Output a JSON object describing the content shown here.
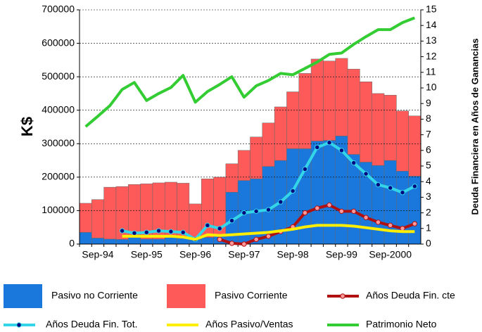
{
  "chart_data": {
    "type": "bar",
    "y_label": "K$",
    "y2_label": "Deuda Financiera en Años de Ganancias",
    "categories": [
      null,
      "Sep-94",
      null,
      null,
      null,
      "Sep-95",
      null,
      null,
      null,
      "Sep-96",
      null,
      null,
      null,
      "Sep-97",
      null,
      null,
      null,
      "Sep-98",
      null,
      null,
      null,
      "Sep-99",
      null,
      null,
      null,
      "Sep-2000",
      null,
      null
    ],
    "ylim": [
      0,
      700000
    ],
    "yticks": [
      0,
      100000,
      200000,
      300000,
      400000,
      500000,
      600000,
      700000
    ],
    "y2lim": [
      0,
      15
    ],
    "y2ticks": [
      0,
      1,
      2,
      3,
      4,
      5,
      6,
      7,
      8,
      9,
      10,
      11,
      12,
      13,
      14,
      15
    ],
    "grid": true,
    "stacked": true,
    "legend": "bottom",
    "series": [
      {
        "name": "Pasivo no Corriente",
        "type": "bar",
        "color": "#1a78dc",
        "values": [
          35000,
          18000,
          15000,
          14000,
          23000,
          15000,
          15000,
          20000,
          17000,
          15000,
          20000,
          25000,
          155000,
          190000,
          195000,
          232000,
          250000,
          285000,
          285000,
          308000,
          310000,
          323000,
          268000,
          245000,
          235000,
          250000,
          218000,
          203000
        ]
      },
      {
        "name": "Pasivo Corriente",
        "type": "bar",
        "color": "#ff5a5a",
        "values": [
          87000,
          115000,
          155000,
          158000,
          155000,
          165000,
          168000,
          165000,
          165000,
          105000,
          175000,
          175000,
          85000,
          90000,
          125000,
          130000,
          160000,
          170000,
          225000,
          245000,
          237000,
          232000,
          255000,
          240000,
          215000,
          195000,
          180000,
          180000
        ]
      },
      {
        "name": "Años Deuda Fin. cte",
        "type": "line",
        "axis": "y2",
        "color": "#b01010",
        "marker_color": "#ff9999",
        "values": [
          null,
          null,
          null,
          null,
          null,
          null,
          null,
          null,
          null,
          null,
          null,
          0.3,
          0.05,
          0,
          0.3,
          0.5,
          0.8,
          1.1,
          2.0,
          2.3,
          2.5,
          2.1,
          2.1,
          1.7,
          1.4,
          1.2,
          1.0,
          1.3
        ]
      },
      {
        "name": "Años Deuda Fin. Tot.",
        "type": "line",
        "axis": "y2",
        "color": "#33d6e8",
        "marker_color": "#000080",
        "values": [
          null,
          null,
          null,
          0.85,
          0.7,
          0.75,
          0.85,
          0.8,
          0.75,
          0.3,
          1.2,
          1.0,
          1.5,
          2.0,
          2.1,
          2.2,
          2.7,
          3.4,
          4.8,
          6.2,
          6.5,
          6.0,
          5.2,
          4.5,
          3.8,
          3.6,
          3.3,
          3.7
        ]
      },
      {
        "name": "Años Pasivo/Ventas",
        "type": "line",
        "axis": "y2",
        "color": "#ffee00",
        "values": [
          null,
          null,
          null,
          0.5,
          0.5,
          0.5,
          0.5,
          0.5,
          0.45,
          0.3,
          0.6,
          0.55,
          0.6,
          0.65,
          0.7,
          0.75,
          0.85,
          0.95,
          1.1,
          1.2,
          1.2,
          1.2,
          1.15,
          1.05,
          0.95,
          0.85,
          0.8,
          0.8
        ]
      },
      {
        "name": "Patrimonio Neto",
        "type": "line",
        "color": "#33cc33",
        "values": [
          351000,
          382000,
          414000,
          462000,
          483000,
          429000,
          450000,
          468000,
          504000,
          424000,
          456000,
          477000,
          500000,
          439000,
          473000,
          489000,
          510000,
          506000,
          525000,
          544000,
          567000,
          571000,
          597000,
          620000,
          641000,
          641000,
          662000,
          676000
        ]
      }
    ]
  }
}
